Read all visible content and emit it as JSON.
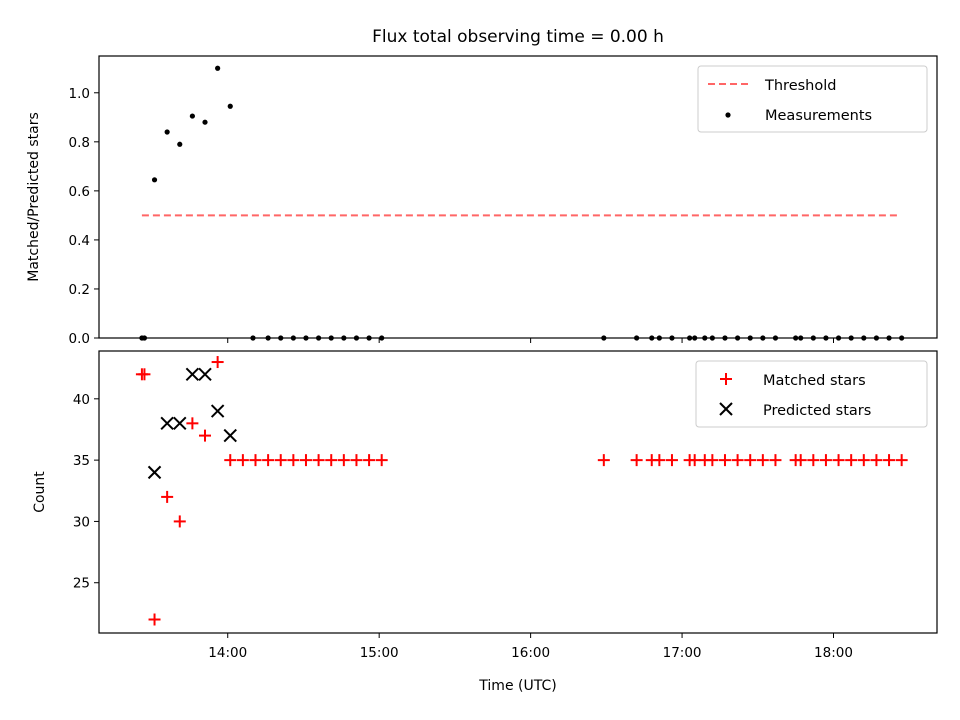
{
  "title": "Flux total observing time = 0.00 h",
  "chart_data": [
    {
      "type": "scatter",
      "panel": "top",
      "ylabel": "Matched/Predicted stars",
      "xlabel": "",
      "ylim": [
        0.0,
        1.15
      ],
      "yticks": [
        0.0,
        0.2,
        0.4,
        0.6,
        0.8,
        1.0
      ],
      "ytick_labels": [
        "0.0",
        "0.2",
        "0.4",
        "0.6",
        "0.8",
        "1.0"
      ],
      "threshold": {
        "name": "Threshold",
        "value": 0.5,
        "xrange": [
          "13:26",
          "18:26"
        ],
        "color": "#ff6666"
      },
      "series": [
        {
          "name": "Measurements",
          "marker": "dot",
          "color": "#000000",
          "x": [
            "13:26",
            "13:27",
            "13:31",
            "13:36",
            "13:41",
            "13:46",
            "13:51",
            "13:56",
            "14:01",
            "14:10",
            "14:16",
            "14:21",
            "14:26",
            "14:31",
            "14:36",
            "14:41",
            "14:46",
            "14:51",
            "14:56",
            "15:01",
            "16:29",
            "16:42",
            "16:48",
            "16:51",
            "16:56",
            "17:03",
            "17:05",
            "17:09",
            "17:12",
            "17:17",
            "17:22",
            "17:27",
            "17:32",
            "17:37",
            "17:45",
            "17:47",
            "17:52",
            "17:57",
            "18:02",
            "18:07",
            "18:12",
            "18:17",
            "18:22",
            "18:27"
          ],
          "y": [
            0.0,
            0.0,
            0.645,
            0.84,
            0.79,
            0.905,
            0.88,
            1.1,
            0.945,
            0.0,
            0.0,
            0.0,
            0.0,
            0.0,
            0.0,
            0.0,
            0.0,
            0.0,
            0.0,
            0.0,
            0.0,
            0.0,
            0.0,
            0.0,
            0.0,
            0.0,
            0.0,
            0.0,
            0.0,
            0.0,
            0.0,
            0.0,
            0.0,
            0.0,
            0.0,
            0.0,
            0.0,
            0.0,
            0.0,
            0.0,
            0.0,
            0.0,
            0.0,
            0.0
          ]
        }
      ],
      "legend": {
        "placement": "top-right",
        "entries": [
          "Threshold",
          "Measurements"
        ]
      }
    },
    {
      "type": "scatter",
      "panel": "bottom",
      "ylabel": "Count",
      "xlabel": "Time (UTC)",
      "ylim": [
        20.9,
        43.9
      ],
      "yticks": [
        25,
        30,
        35,
        40
      ],
      "ytick_labels": [
        "25",
        "30",
        "35",
        "40"
      ],
      "xticks": [
        "14:00",
        "15:00",
        "16:00",
        "17:00",
        "18:00"
      ],
      "xlim": [
        "13:09",
        "18:41"
      ],
      "series": [
        {
          "name": "Matched stars",
          "marker": "plus",
          "color": "#ff0000",
          "x": [
            "13:26",
            "13:27",
            "13:31",
            "13:36",
            "13:41",
            "13:46",
            "13:51",
            "13:56",
            "14:01",
            "14:06",
            "14:11",
            "14:16",
            "14:21",
            "14:26",
            "14:31",
            "14:36",
            "14:41",
            "14:46",
            "14:51",
            "14:56",
            "15:01",
            "16:29",
            "16:42",
            "16:48",
            "16:51",
            "16:56",
            "17:03",
            "17:05",
            "17:09",
            "17:12",
            "17:17",
            "17:22",
            "17:27",
            "17:32",
            "17:37",
            "17:45",
            "17:47",
            "17:52",
            "17:57",
            "18:02",
            "18:07",
            "18:12",
            "18:17",
            "18:22",
            "18:27"
          ],
          "y": [
            42,
            42,
            22,
            32,
            30,
            38,
            37,
            43,
            35,
            35,
            35,
            35,
            35,
            35,
            35,
            35,
            35,
            35,
            35,
            35,
            35,
            35,
            35,
            35,
            35,
            35,
            35,
            35,
            35,
            35,
            35,
            35,
            35,
            35,
            35,
            35,
            35,
            35,
            35,
            35,
            35,
            35,
            35,
            35,
            35
          ]
        },
        {
          "name": "Predicted stars",
          "marker": "x",
          "color": "#000000",
          "x": [
            "13:31",
            "13:36",
            "13:41",
            "13:46",
            "13:51",
            "13:56",
            "14:01"
          ],
          "y": [
            34,
            38,
            38,
            42,
            42,
            39,
            37
          ]
        }
      ],
      "legend": {
        "placement": "top-right",
        "entries": [
          "Matched stars",
          "Predicted stars"
        ]
      }
    }
  ]
}
